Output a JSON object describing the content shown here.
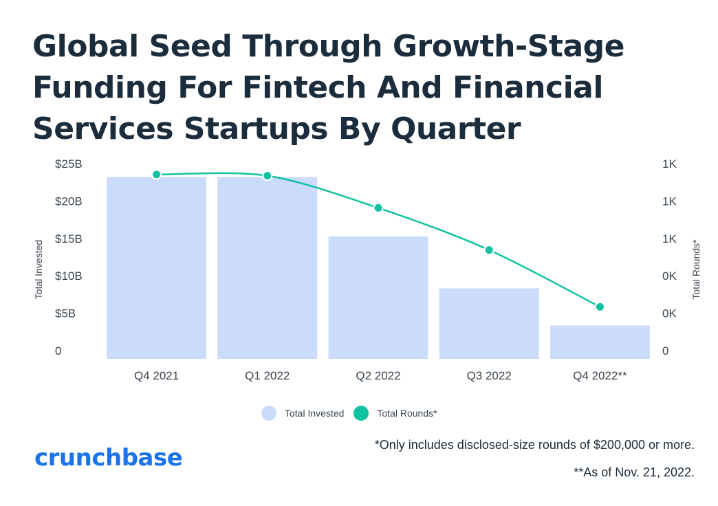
{
  "title": "Global Seed Through Growth-Stage Funding For Fintech And Financial Services Startups By Quarter",
  "legend": {
    "items": [
      {
        "label": "Total Invested",
        "color": "#cbdcfb"
      },
      {
        "label": "Total Rounds*",
        "color": "#10c2a0"
      }
    ]
  },
  "brand": "crunchbase",
  "notes": {
    "note1": "*Only includes disclosed-size rounds of $200,000 or more.",
    "note2": "**As of Nov. 21, 2022."
  },
  "chart_data": {
    "type": "bar+line",
    "categories": [
      "Q4 2021",
      "Q1 2022",
      "Q2 2022",
      "Q3 2022",
      "Q4 2022**"
    ],
    "series": [
      {
        "name": "Total Invested",
        "type": "bar",
        "axis": "left",
        "color": "#cbdcfb",
        "values": [
          24.5,
          24.5,
          16.5,
          9.5,
          4.5
        ]
      },
      {
        "name": "Total Rounds*",
        "type": "line",
        "axis": "right",
        "color": "#10c2a0",
        "values": [
          1490,
          1480,
          1220,
          880,
          420
        ]
      }
    ],
    "ylabel_left": "Total Invested",
    "ylabel_right": "Total Rounds*",
    "left_ticks": [
      "0",
      "$5B",
      "$10B",
      "$15B",
      "$20B",
      "$25B"
    ],
    "right_ticks": [
      "0",
      "0K",
      "0K",
      "1K",
      "1K",
      "1K"
    ],
    "ylim_left": [
      0,
      25
    ],
    "ylim_right": [
      0,
      1500
    ],
    "legend_position": "bottom"
  }
}
